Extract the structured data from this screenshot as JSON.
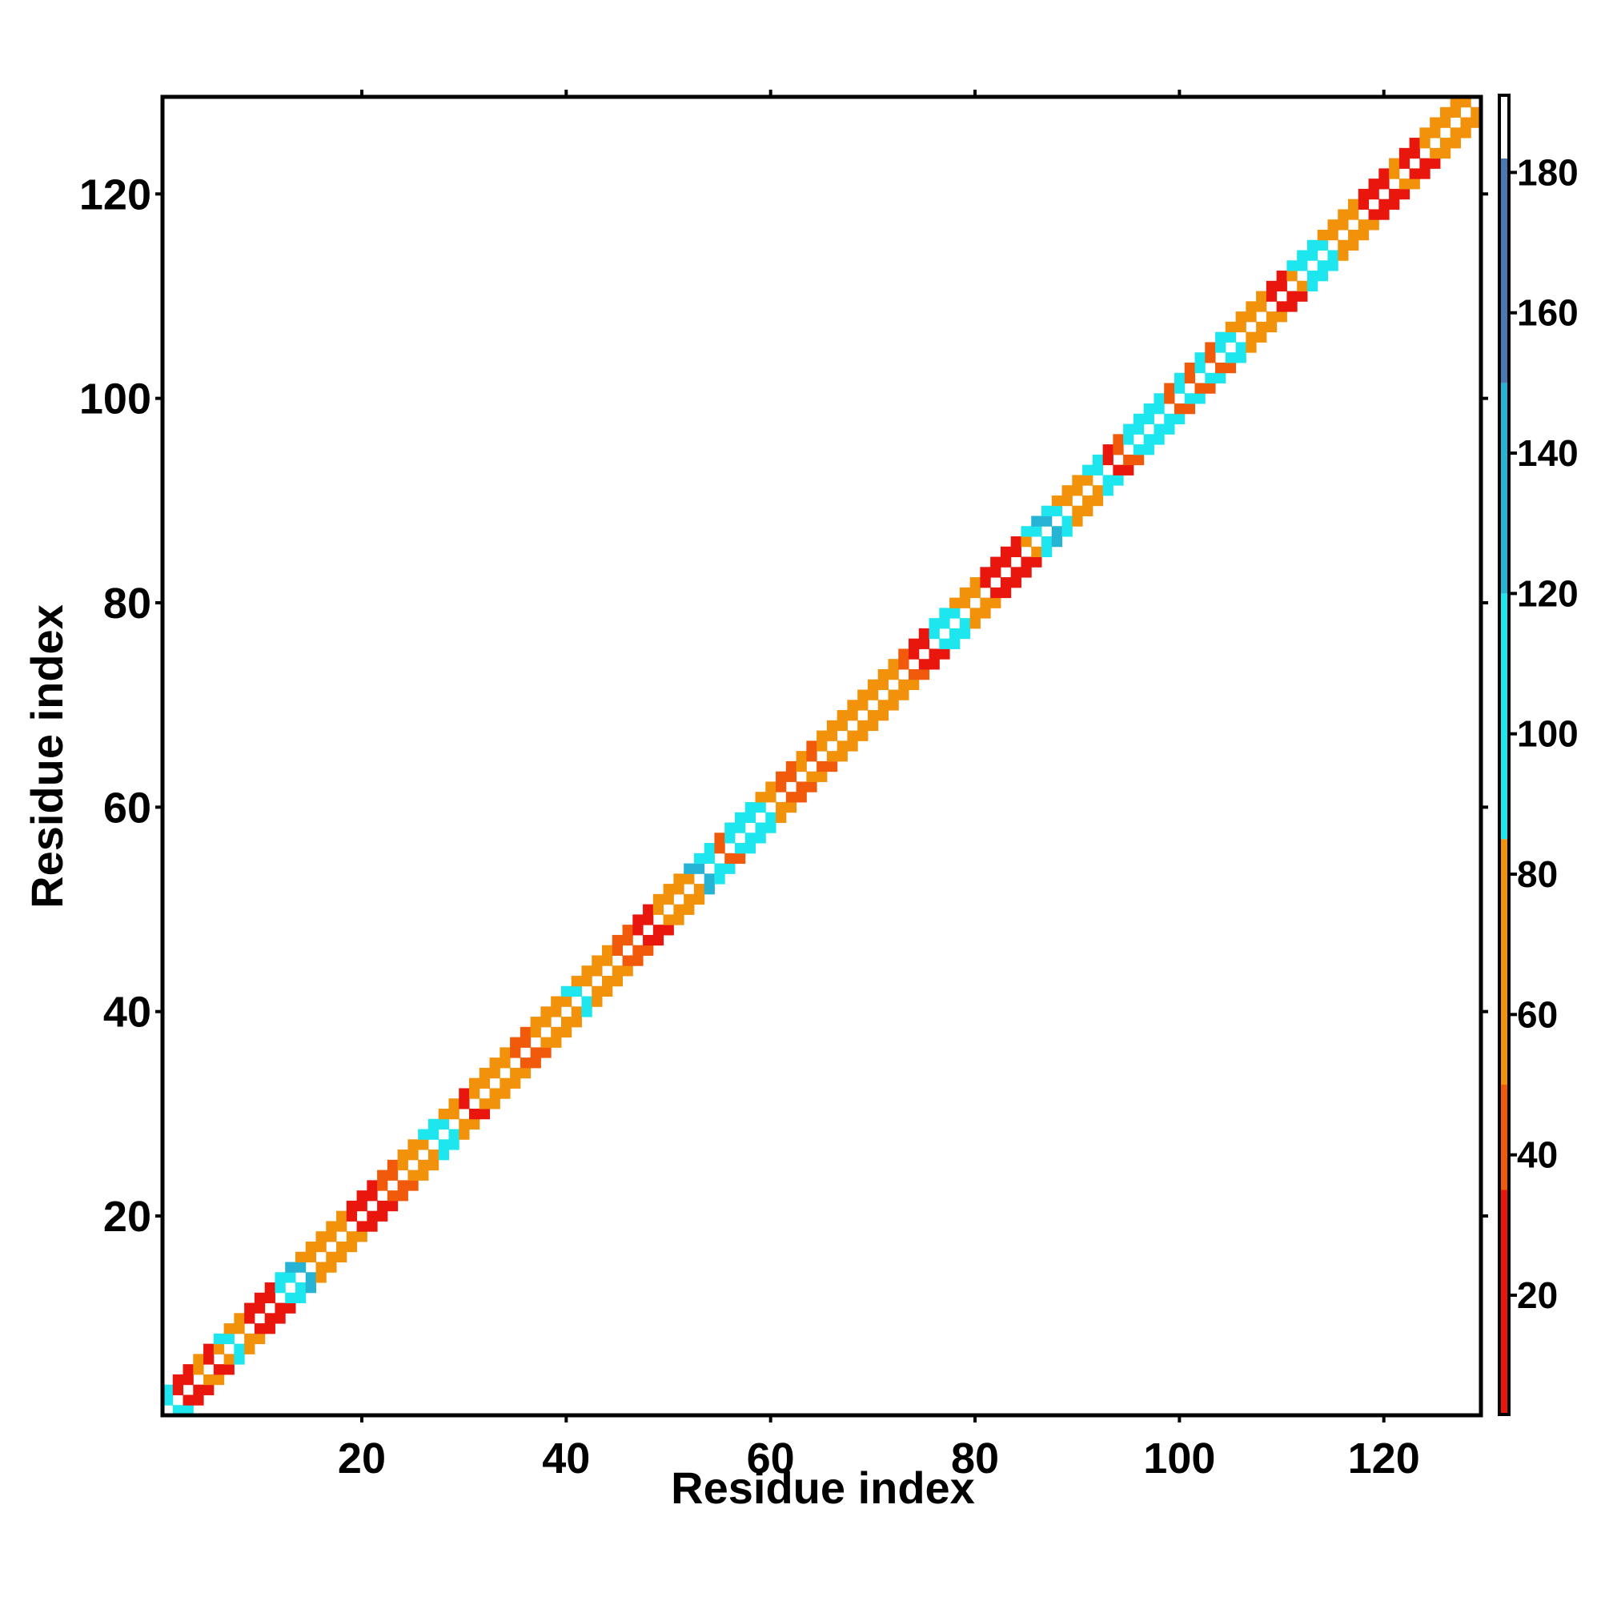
{
  "chart_data": {
    "type": "heatmap",
    "title": "",
    "xlabel": "Residue index",
    "ylabel": "Residue index",
    "xlim": [
      0.5,
      129.5
    ],
    "ylim": [
      0.5,
      129.5
    ],
    "x_ticks": [
      20,
      40,
      60,
      80,
      100,
      120
    ],
    "y_ticks": [
      20,
      40,
      60,
      80,
      100,
      120
    ],
    "x_tick_labels": [
      "20",
      "40",
      "60",
      "80",
      "100",
      "120"
    ],
    "y_tick_labels": [
      "20",
      "40",
      "60",
      "80",
      "100",
      "120"
    ],
    "grid": false,
    "colorbar": {
      "range": [
        3,
        191
      ],
      "ticks": [
        20,
        40,
        60,
        80,
        100,
        120,
        140,
        160,
        180
      ],
      "tick_labels": [
        "20",
        "40",
        "60",
        "80",
        "100",
        "120",
        "140",
        "160",
        "180"
      ],
      "stops": [
        {
          "from": 3,
          "to": 35,
          "color": "#e8160c"
        },
        {
          "from": 35,
          "to": 50,
          "color": "#f05a0a"
        },
        {
          "from": 50,
          "to": 85,
          "color": "#f2920a"
        },
        {
          "from": 85,
          "to": 120,
          "color": "#1ee6ee"
        },
        {
          "from": 120,
          "to": 150,
          "color": "#27b3d4"
        },
        {
          "from": 150,
          "to": 182,
          "color": "#4a78b0"
        },
        {
          "from": 182,
          "to": 191,
          "color": "#ffffff"
        }
      ]
    },
    "diagonal_band": {
      "description_levels": "contact values near diagonal by residue pair",
      "cells": [
        [
          1,
          2,
          110
        ],
        [
          2,
          3,
          25
        ],
        [
          3,
          4,
          25
        ],
        [
          4,
          5,
          70
        ],
        [
          5,
          6,
          25
        ],
        [
          6,
          7,
          70
        ],
        [
          7,
          8,
          100
        ],
        [
          8,
          9,
          70
        ],
        [
          9,
          10,
          25
        ],
        [
          10,
          11,
          25
        ],
        [
          11,
          12,
          25
        ],
        [
          12,
          13,
          100
        ],
        [
          13,
          14,
          100
        ],
        [
          14,
          15,
          125
        ],
        [
          15,
          16,
          70
        ],
        [
          16,
          17,
          70
        ],
        [
          17,
          18,
          70
        ],
        [
          18,
          19,
          70
        ],
        [
          19,
          20,
          25
        ],
        [
          20,
          21,
          25
        ],
        [
          21,
          22,
          25
        ],
        [
          22,
          23,
          40
        ],
        [
          23,
          24,
          40
        ],
        [
          24,
          25,
          70
        ],
        [
          25,
          26,
          70
        ],
        [
          26,
          27,
          70
        ],
        [
          27,
          28,
          100
        ],
        [
          28,
          29,
          100
        ],
        [
          29,
          30,
          70
        ],
        [
          30,
          31,
          25
        ],
        [
          31,
          32,
          70
        ],
        [
          32,
          33,
          70
        ],
        [
          33,
          34,
          70
        ],
        [
          34,
          35,
          70
        ],
        [
          35,
          36,
          40
        ],
        [
          36,
          37,
          40
        ],
        [
          37,
          38,
          70
        ],
        [
          38,
          39,
          70
        ],
        [
          39,
          40,
          70
        ],
        [
          40,
          41,
          70
        ],
        [
          41,
          42,
          100
        ],
        [
          42,
          43,
          70
        ],
        [
          43,
          44,
          70
        ],
        [
          44,
          45,
          70
        ],
        [
          45,
          46,
          40
        ],
        [
          46,
          47,
          40
        ],
        [
          47,
          48,
          25
        ],
        [
          48,
          49,
          25
        ],
        [
          49,
          50,
          70
        ],
        [
          50,
          51,
          70
        ],
        [
          51,
          52,
          70
        ],
        [
          52,
          53,
          70
        ],
        [
          53,
          54,
          125
        ],
        [
          54,
          55,
          100
        ],
        [
          55,
          56,
          40
        ],
        [
          56,
          57,
          100
        ],
        [
          57,
          58,
          100
        ],
        [
          58,
          59,
          100
        ],
        [
          59,
          60,
          100
        ],
        [
          60,
          61,
          70
        ],
        [
          61,
          62,
          40
        ],
        [
          62,
          63,
          40
        ],
        [
          63,
          64,
          70
        ],
        [
          64,
          65,
          40
        ],
        [
          65,
          66,
          70
        ],
        [
          66,
          67,
          70
        ],
        [
          67,
          68,
          70
        ],
        [
          68,
          69,
          70
        ],
        [
          69,
          70,
          70
        ],
        [
          70,
          71,
          70
        ],
        [
          71,
          72,
          70
        ],
        [
          72,
          73,
          70
        ],
        [
          73,
          74,
          40
        ],
        [
          74,
          75,
          25
        ],
        [
          75,
          76,
          25
        ],
        [
          76,
          77,
          100
        ],
        [
          77,
          78,
          100
        ],
        [
          78,
          79,
          100
        ],
        [
          79,
          80,
          70
        ],
        [
          80,
          81,
          70
        ],
        [
          81,
          82,
          25
        ],
        [
          82,
          83,
          25
        ],
        [
          83,
          84,
          25
        ],
        [
          84,
          85,
          25
        ],
        [
          85,
          86,
          70
        ],
        [
          86,
          87,
          100
        ],
        [
          87,
          88,
          125
        ],
        [
          88,
          89,
          100
        ],
        [
          89,
          90,
          70
        ],
        [
          90,
          91,
          70
        ],
        [
          91,
          92,
          70
        ],
        [
          92,
          93,
          100
        ],
        [
          93,
          94,
          25
        ],
        [
          94,
          95,
          40
        ],
        [
          95,
          96,
          100
        ],
        [
          96,
          97,
          100
        ],
        [
          97,
          98,
          100
        ],
        [
          98,
          99,
          100
        ],
        [
          99,
          100,
          40
        ],
        [
          100,
          101,
          100
        ],
        [
          101,
          102,
          40
        ],
        [
          102,
          103,
          100
        ],
        [
          103,
          104,
          40
        ],
        [
          104,
          105,
          100
        ],
        [
          105,
          106,
          100
        ],
        [
          106,
          107,
          70
        ],
        [
          107,
          108,
          70
        ],
        [
          108,
          109,
          70
        ],
        [
          109,
          110,
          25
        ],
        [
          110,
          111,
          25
        ],
        [
          111,
          112,
          70
        ],
        [
          112,
          113,
          100
        ],
        [
          113,
          114,
          100
        ],
        [
          114,
          115,
          100
        ],
        [
          115,
          116,
          70
        ],
        [
          116,
          117,
          70
        ],
        [
          117,
          118,
          70
        ],
        [
          118,
          119,
          25
        ],
        [
          119,
          120,
          25
        ],
        [
          120,
          121,
          25
        ],
        [
          121,
          122,
          70
        ],
        [
          122,
          123,
          25
        ],
        [
          123,
          124,
          25
        ],
        [
          124,
          125,
          70
        ],
        [
          125,
          126,
          70
        ],
        [
          126,
          127,
          70
        ],
        [
          127,
          128,
          70
        ],
        [
          128,
          129,
          70
        ]
      ]
    }
  }
}
